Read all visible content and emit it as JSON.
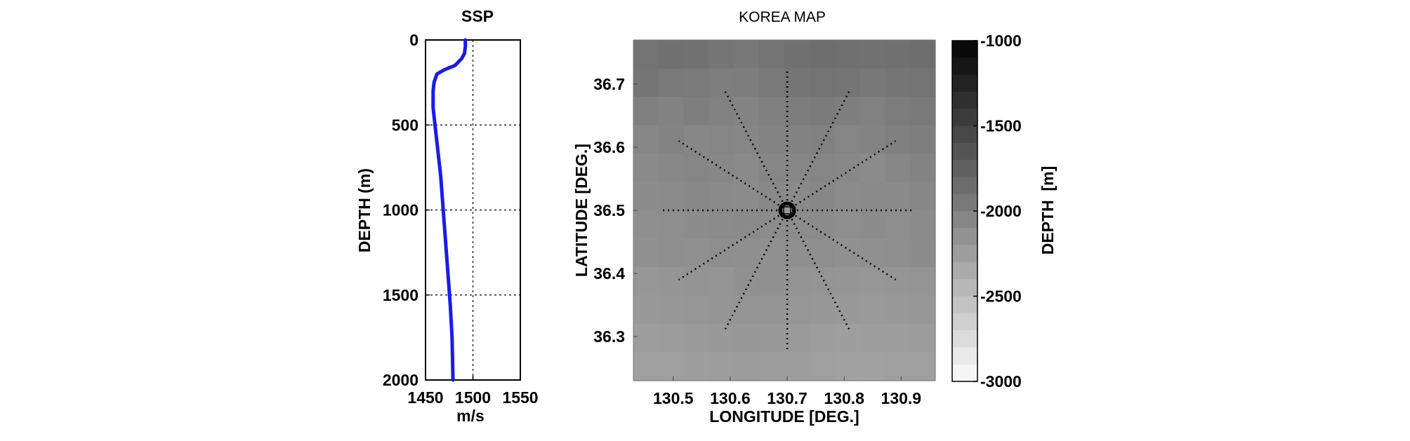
{
  "chart_data": [
    {
      "type": "line",
      "title": "SSP",
      "xlabel": "m/s",
      "ylabel": "DEPTH (m)",
      "xlim": [
        1450,
        1550
      ],
      "ylim": [
        0,
        2000
      ],
      "y_reversed": true,
      "xticks": [
        1450,
        1500,
        1550
      ],
      "yticks": [
        0,
        500,
        1000,
        1500,
        2000
      ],
      "grid": "dotted",
      "series": [
        {
          "color": "#1a1aee",
          "x": [
            1492,
            1492,
            1491,
            1488,
            1481,
            1470,
            1462,
            1459,
            1458,
            1458,
            1458,
            1460,
            1462,
            1464,
            1466,
            1468,
            1470,
            1472,
            1474,
            1476,
            1478,
            1479
          ],
          "y": [
            0,
            40,
            80,
            110,
            150,
            175,
            200,
            250,
            300,
            350,
            400,
            500,
            600,
            700,
            800,
            950,
            1100,
            1250,
            1400,
            1550,
            1750,
            2000
          ]
        }
      ]
    },
    {
      "type": "heatmap",
      "title": "KOREA MAP",
      "xlabel": "LONGITUDE [DEG.]",
      "ylabel": "LATITUDE [DEG.]",
      "xlim": [
        130.43,
        130.96
      ],
      "ylim": [
        36.23,
        36.77
      ],
      "xticks": [
        "130.5",
        "130.6",
        "130.7",
        "130.8",
        "130.9"
      ],
      "yticks": [
        "36.3",
        "36.4",
        "36.5",
        "36.6",
        "36.7"
      ],
      "center": {
        "lon": 130.7,
        "lat": 36.5
      },
      "radials": {
        "count": 12,
        "step_deg": 30,
        "length_deg": 0.22,
        "style": "dotted"
      },
      "depth_field_rows_north_to_south": [
        [
          -1900,
          -1880,
          -1890,
          -1920,
          -1940,
          -1910,
          -1880,
          -1860,
          -1870,
          -1890,
          -1880,
          -1860
        ],
        [
          -1920,
          -1950,
          -1960,
          -1990,
          -1980,
          -1950,
          -1920,
          -1900,
          -1910,
          -1940,
          -1920,
          -1900
        ],
        [
          -2000,
          -2020,
          -1990,
          -2010,
          -2030,
          -2000,
          -1980,
          -1960,
          -1990,
          -2010,
          -1970,
          -1950
        ],
        [
          -2050,
          -2030,
          -2060,
          -2040,
          -2050,
          -2030,
          -2020,
          -2010,
          -2040,
          -2030,
          -2000,
          -1990
        ],
        [
          -2080,
          -2070,
          -2050,
          -2060,
          -2080,
          -2050,
          -2060,
          -2040,
          -2070,
          -2090,
          -2060,
          -2030
        ],
        [
          -2100,
          -2090,
          -2070,
          -2080,
          -2090,
          -2070,
          -2080,
          -2060,
          -2090,
          -2080,
          -2080,
          -2060
        ],
        [
          -2120,
          -2110,
          -2100,
          -2090,
          -2080,
          -2090,
          -2100,
          -2090,
          -2110,
          -2100,
          -2110,
          -2090
        ],
        [
          -2140,
          -2120,
          -2130,
          -2110,
          -2120,
          -2130,
          -2120,
          -2110,
          -2140,
          -2130,
          -2120,
          -2100
        ],
        [
          -2180,
          -2170,
          -2150,
          -2160,
          -2140,
          -2130,
          -2150,
          -2160,
          -2170,
          -2180,
          -2170,
          -2160
        ],
        [
          -2200,
          -2190,
          -2180,
          -2170,
          -2160,
          -2170,
          -2180,
          -2190,
          -2200,
          -2210,
          -2200,
          -2190
        ],
        [
          -2230,
          -2220,
          -2210,
          -2200,
          -2190,
          -2200,
          -2210,
          -2230,
          -2240,
          -2230,
          -2230,
          -2220
        ],
        [
          -2250,
          -2250,
          -2240,
          -2230,
          -2220,
          -2230,
          -2240,
          -2250,
          -2260,
          -2260,
          -2250,
          -2250
        ]
      ]
    },
    {
      "type": "colorbar",
      "label": "DEPTH  [m]",
      "range": [
        -3000,
        -1000
      ],
      "ticks": [
        "-1000",
        "-1500",
        "-2000",
        "-2500",
        "-3000"
      ],
      "levels": 20,
      "colormap": "gray"
    }
  ]
}
